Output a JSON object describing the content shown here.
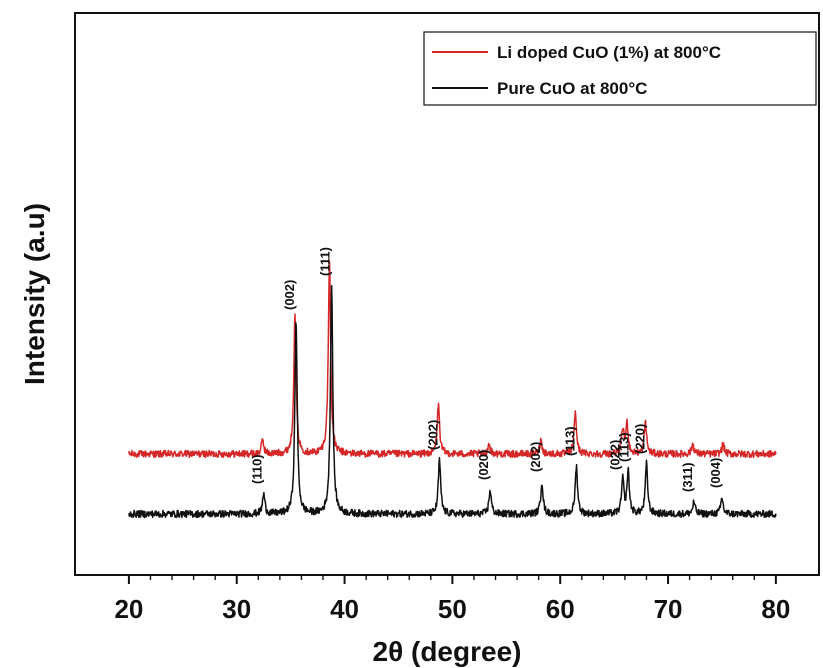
{
  "chart_data": {
    "type": "line",
    "title": "",
    "xlabel": "2θ (degree)",
    "ylabel": "Intensity (a.u)",
    "xlim": [
      15,
      84
    ],
    "x_ticks": [
      20,
      30,
      40,
      50,
      60,
      70,
      80
    ],
    "y_ticks_shown": false,
    "grid": false,
    "legend_position": "top-right",
    "series": [
      {
        "name": "Li doped CuO (1%) at 800°C",
        "color": "#d62728",
        "x_range": [
          20,
          80
        ],
        "baseline": 0.3,
        "peaks": [
          {
            "x": 32.4,
            "height": 0.07
          },
          {
            "x": 35.4,
            "height": 0.69
          },
          {
            "x": 38.6,
            "height": 0.96
          },
          {
            "x": 48.7,
            "height": 0.25
          },
          {
            "x": 53.4,
            "height": 0.05
          },
          {
            "x": 58.2,
            "height": 0.07
          },
          {
            "x": 61.4,
            "height": 0.21
          },
          {
            "x": 65.8,
            "height": 0.12
          },
          {
            "x": 66.2,
            "height": 0.15
          },
          {
            "x": 67.9,
            "height": 0.16
          },
          {
            "x": 72.3,
            "height": 0.05
          },
          {
            "x": 75.1,
            "height": 0.05
          }
        ]
      },
      {
        "name": "Pure CuO at 800°C",
        "color": "#111111",
        "x_range": [
          20,
          80
        ],
        "baseline": 0.0,
        "peaks": [
          {
            "x": 32.5,
            "height": 0.1
          },
          {
            "x": 35.5,
            "height": 0.97
          },
          {
            "x": 38.8,
            "height": 1.14
          },
          {
            "x": 48.8,
            "height": 0.27
          },
          {
            "x": 53.5,
            "height": 0.12
          },
          {
            "x": 58.3,
            "height": 0.16
          },
          {
            "x": 61.5,
            "height": 0.24
          },
          {
            "x": 65.8,
            "height": 0.17
          },
          {
            "x": 66.3,
            "height": 0.21
          },
          {
            "x": 68.0,
            "height": 0.25
          },
          {
            "x": 72.4,
            "height": 0.06
          },
          {
            "x": 75.0,
            "height": 0.08
          }
        ]
      }
    ],
    "annotations": [
      {
        "text": "(110)",
        "x": 32.5
      },
      {
        "text": "(002)",
        "x": 35.5
      },
      {
        "text": "(111)",
        "x": 38.8
      },
      {
        "text": "(202)",
        "x": 48.8
      },
      {
        "text": "(020)",
        "x": 53.5
      },
      {
        "text": "(202)",
        "x": 58.3
      },
      {
        "text": "(113)",
        "x": 61.5
      },
      {
        "text": "(022)",
        "x": 65.7
      },
      {
        "text": "(113)",
        "x": 66.5
      },
      {
        "text": "(220)",
        "x": 68.0
      },
      {
        "text": "(311)",
        "x": 72.4
      },
      {
        "text": "(004)",
        "x": 75.0
      }
    ]
  }
}
